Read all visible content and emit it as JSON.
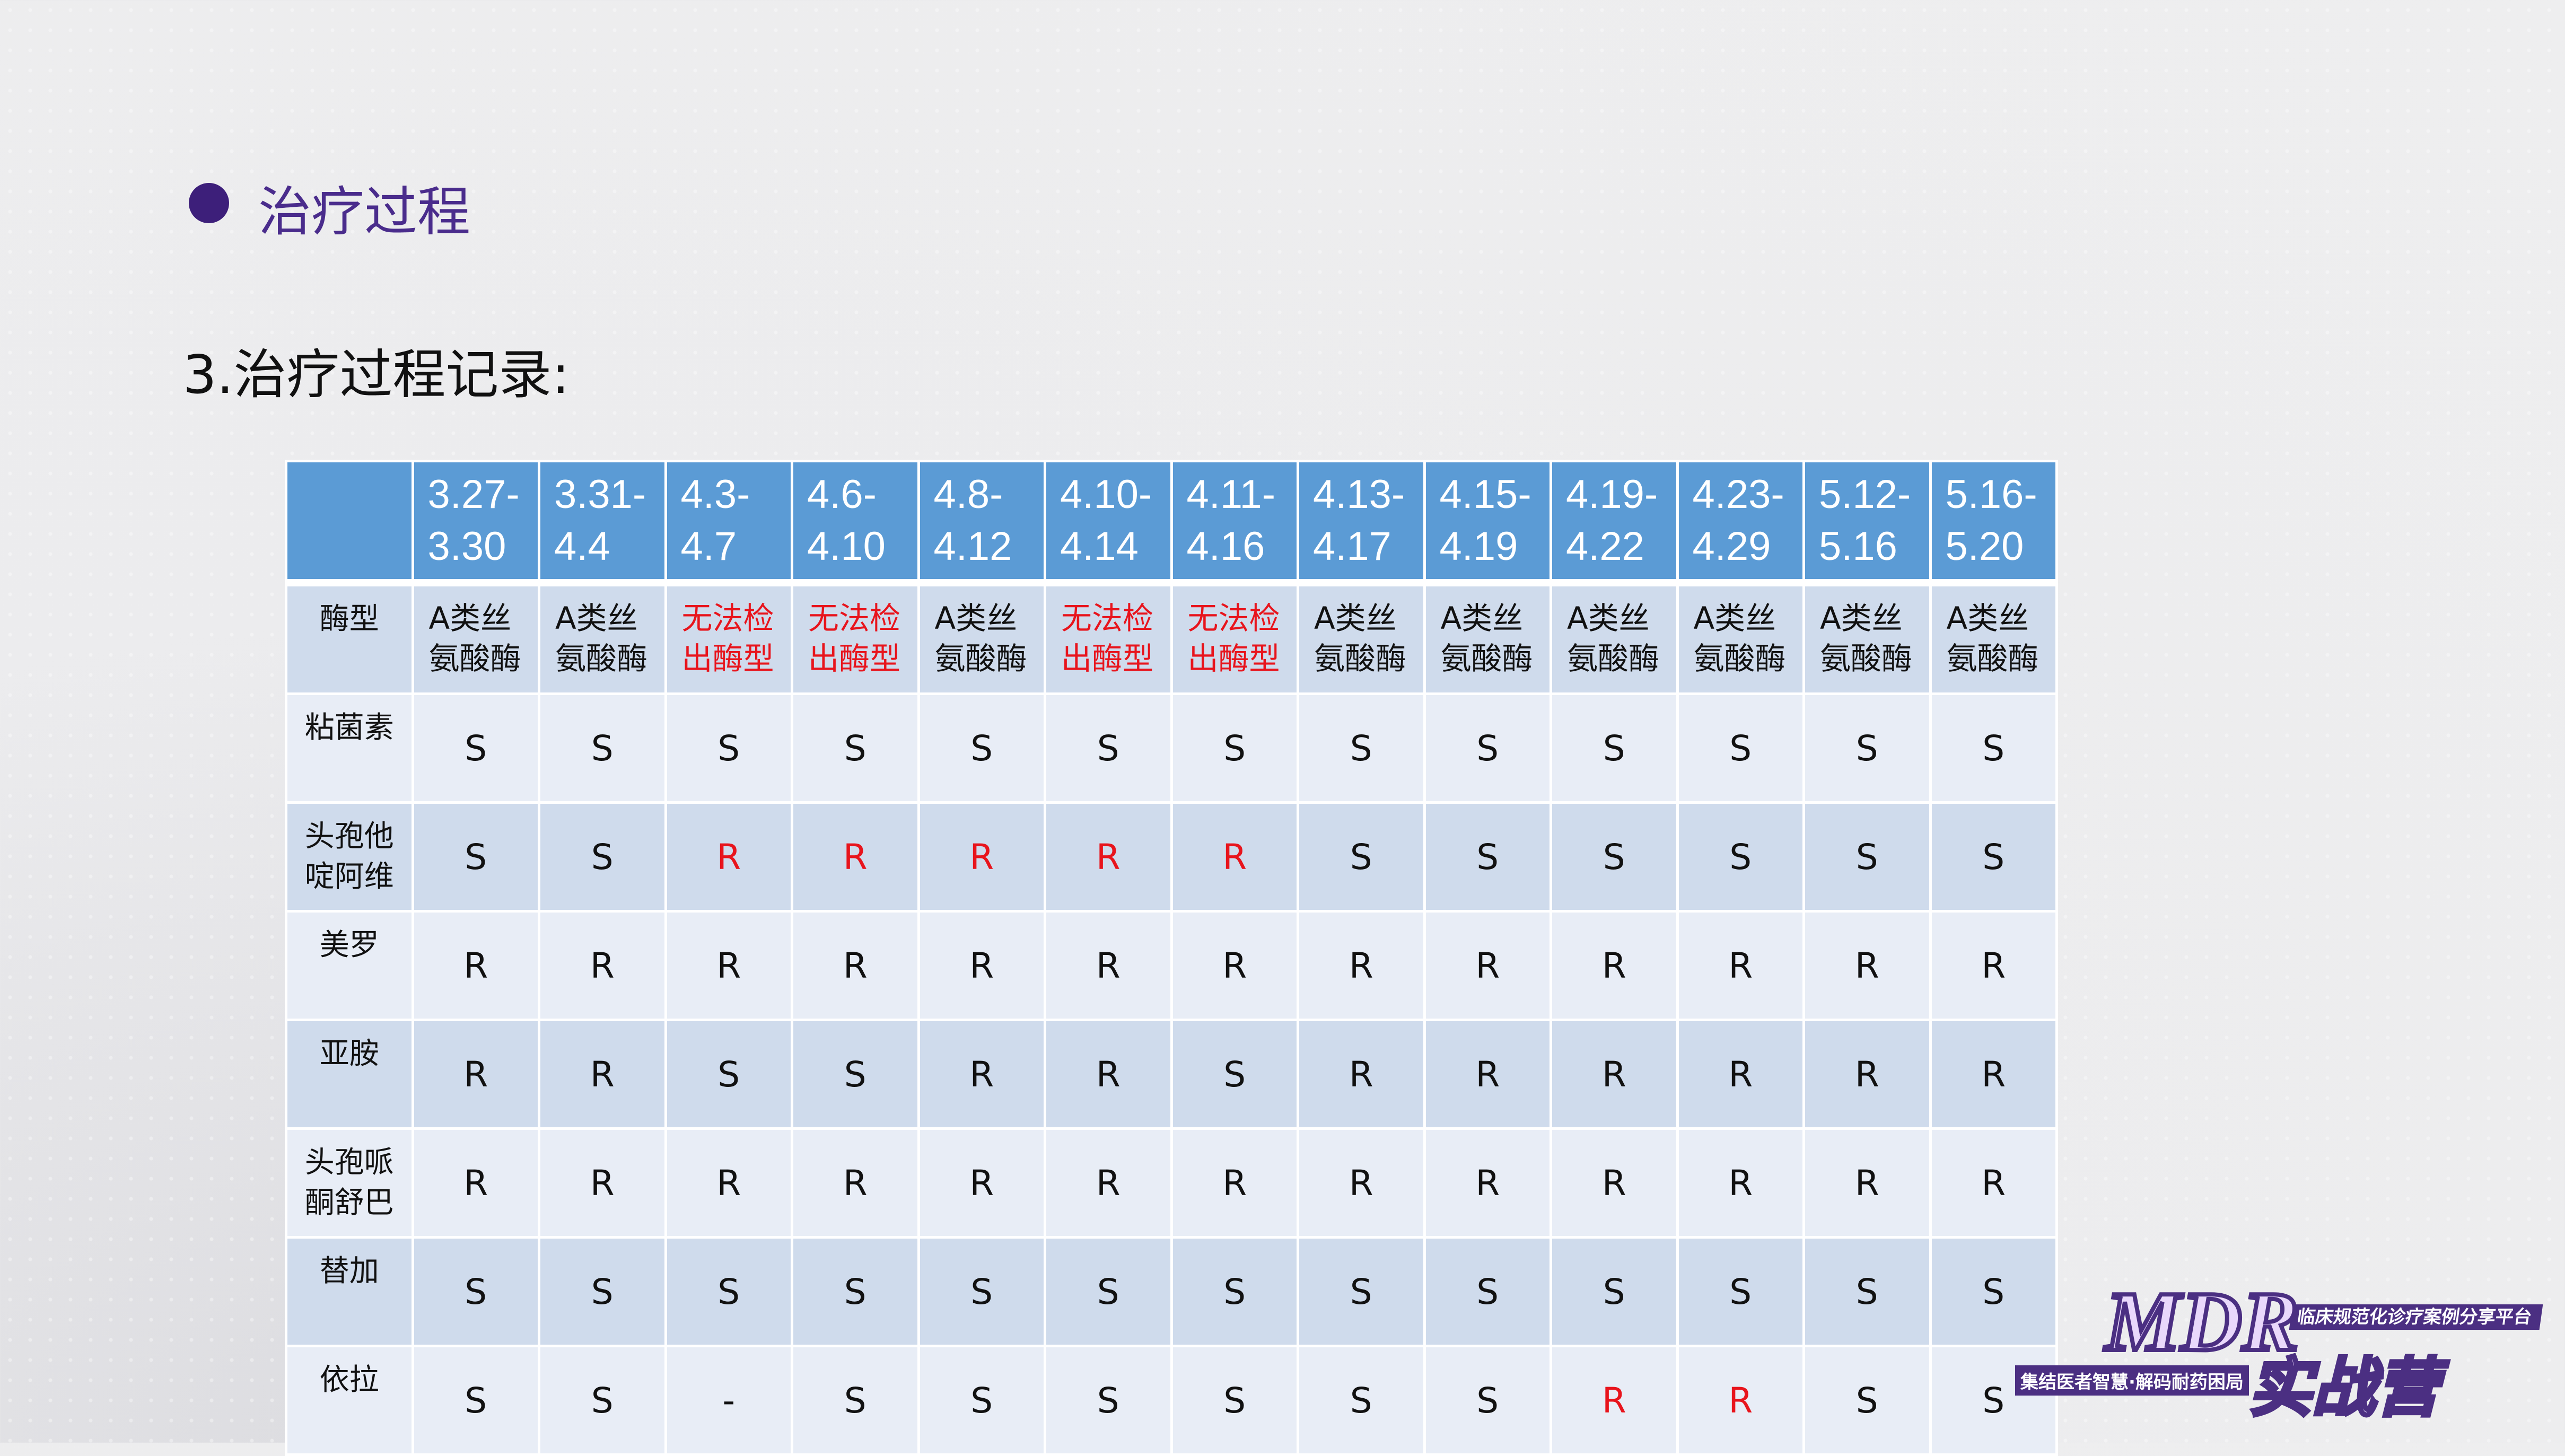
{
  "heading": "治疗过程",
  "subtitle": "3.治疗过程记录:",
  "table": {
    "columns": [
      [
        "3.27-",
        "3.30"
      ],
      [
        "3.31-",
        "4.4"
      ],
      [
        "4.3-",
        "4.7"
      ],
      [
        "4.6-",
        "4.10"
      ],
      [
        "4.8-",
        "4.12"
      ],
      [
        "4.10-",
        "4.14"
      ],
      [
        "4.11-",
        "4.16"
      ],
      [
        "4.13-",
        "4.17"
      ],
      [
        "4.15-",
        "4.19"
      ],
      [
        "4.19-",
        "4.22"
      ],
      [
        "4.23-",
        "4.29"
      ],
      [
        "5.12-",
        "5.16"
      ],
      [
        "5.16-",
        "5.20"
      ]
    ],
    "enzyme_row": {
      "label": [
        "酶型"
      ],
      "cells": [
        {
          "v": [
            "A类丝",
            "氨酸酶"
          ]
        },
        {
          "v": [
            "A类丝",
            "氨酸酶"
          ]
        },
        {
          "v": [
            "无法检",
            "出酶型"
          ],
          "red": true
        },
        {
          "v": [
            "无法检",
            "出酶型"
          ],
          "red": true
        },
        {
          "v": [
            "A类丝",
            "氨酸酶"
          ]
        },
        {
          "v": [
            "无法检",
            "出酶型"
          ],
          "red": true
        },
        {
          "v": [
            "无法检",
            "出酶型"
          ],
          "red": true
        },
        {
          "v": [
            "A类丝",
            "氨酸酶"
          ]
        },
        {
          "v": [
            "A类丝",
            "氨酸酶"
          ]
        },
        {
          "v": [
            "A类丝",
            "氨酸酶"
          ]
        },
        {
          "v": [
            "A类丝",
            "氨酸酶"
          ]
        },
        {
          "v": [
            "A类丝",
            "氨酸酶"
          ]
        },
        {
          "v": [
            "A类丝",
            "氨酸酶"
          ]
        }
      ]
    },
    "rows": [
      {
        "label": [
          "粘菌素"
        ],
        "values": [
          "S",
          "S",
          "S",
          "S",
          "S",
          "S",
          "S",
          "S",
          "S",
          "S",
          "S",
          "S",
          "S"
        ],
        "red": []
      },
      {
        "label": [
          "头孢他",
          "啶阿维"
        ],
        "values": [
          "S",
          "S",
          "R",
          "R",
          "R",
          "R",
          "R",
          "S",
          "S",
          "S",
          "S",
          "S",
          "S"
        ],
        "red": [
          2,
          3,
          4,
          5,
          6
        ]
      },
      {
        "label": [
          "美罗"
        ],
        "values": [
          "R",
          "R",
          "R",
          "R",
          "R",
          "R",
          "R",
          "R",
          "R",
          "R",
          "R",
          "R",
          "R"
        ],
        "red": []
      },
      {
        "label": [
          "亚胺"
        ],
        "values": [
          "R",
          "R",
          "S",
          "S",
          "R",
          "R",
          "S",
          "R",
          "R",
          "R",
          "R",
          "R",
          "R"
        ],
        "red": []
      },
      {
        "label": [
          "头孢哌",
          "酮舒巴"
        ],
        "values": [
          "R",
          "R",
          "R",
          "R",
          "R",
          "R",
          "R",
          "R",
          "R",
          "R",
          "R",
          "R",
          "R"
        ],
        "red": []
      },
      {
        "label": [
          "替加"
        ],
        "values": [
          "S",
          "S",
          "S",
          "S",
          "S",
          "S",
          "S",
          "S",
          "S",
          "S",
          "S",
          "S",
          "S"
        ],
        "red": []
      },
      {
        "label": [
          "依拉"
        ],
        "values": [
          "S",
          "S",
          "-",
          "S",
          "S",
          "S",
          "S",
          "S",
          "S",
          "R",
          "R",
          "S",
          "S"
        ],
        "red": [
          9,
          10
        ]
      }
    ]
  },
  "logo": {
    "mdr": "MDR",
    "tagline": "临床规范化诊疗案例分享平台",
    "slogan": "集结医者智慧·解码耐药困局",
    "camp": "实战营"
  },
  "colors": {
    "header": "#5b9bd5",
    "accent": "#4a2c8c",
    "red": "#e8141c"
  }
}
